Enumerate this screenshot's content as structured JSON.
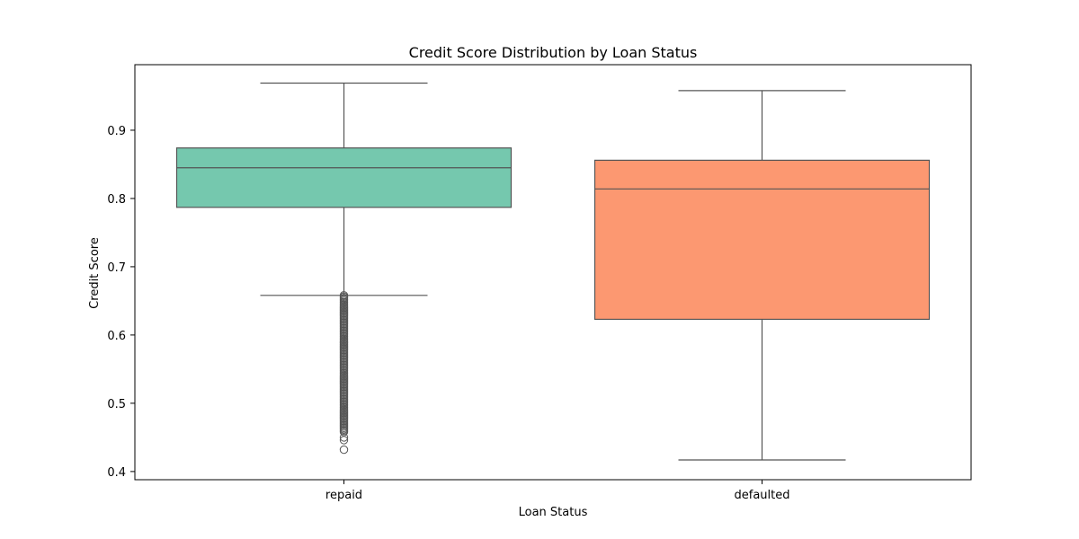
{
  "chart_data": {
    "type": "box",
    "title": "Credit Score Distribution by Loan Status",
    "xlabel": "Loan Status",
    "ylabel": "Credit Score",
    "ylim": [
      0.388,
      0.996
    ],
    "yticks": [
      0.4,
      0.5,
      0.6,
      0.7,
      0.8,
      0.9
    ],
    "ytick_labels": [
      "0.4",
      "0.5",
      "0.6",
      "0.7",
      "0.8",
      "0.9"
    ],
    "categories": [
      "repaid",
      "defaulted"
    ],
    "colors": [
      "#66c2a5",
      "#fc8d62"
    ],
    "grid": false,
    "legend": "none",
    "boxes": [
      {
        "category": "repaid",
        "whisker_low": 0.658,
        "q1": 0.787,
        "median": 0.845,
        "q3": 0.874,
        "whisker_high": 0.969,
        "outliers_range": [
          0.458,
          0.658
        ],
        "outliers_isolated": [
          0.432,
          0.446,
          0.45
        ]
      },
      {
        "category": "defaulted",
        "whisker_low": 0.417,
        "q1": 0.623,
        "median": 0.814,
        "q3": 0.856,
        "whisker_high": 0.958,
        "outliers_range": null,
        "outliers_isolated": []
      }
    ]
  }
}
